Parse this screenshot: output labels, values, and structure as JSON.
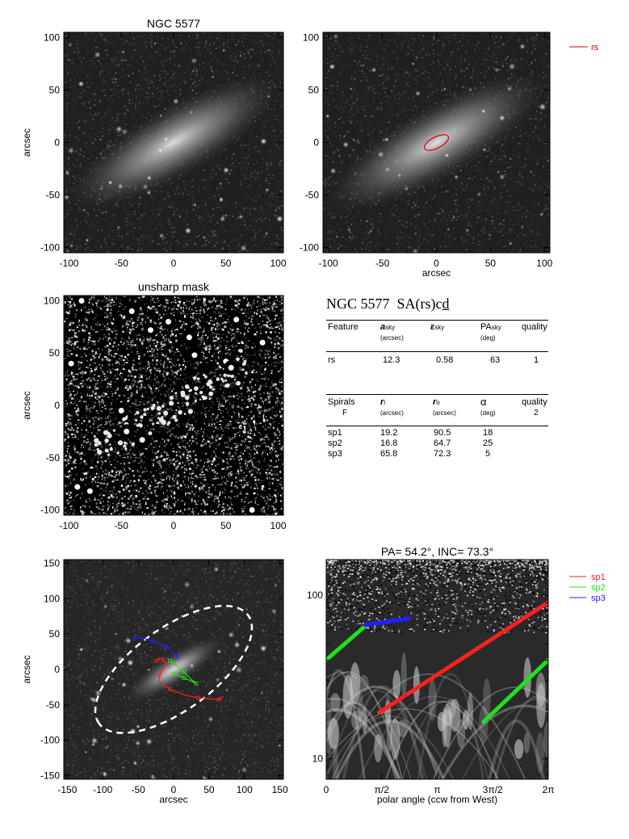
{
  "figure": {
    "panel1_title": "NGC 5577",
    "panel3_title": "unsharp mask",
    "panel6_title": "PA= 54.2°, INC= 73.3°",
    "axis_label_arcsec": "arcsec",
    "axis_label_polar": "polar angle (ccw from West)"
  },
  "legend_rs": "rs",
  "legend_spirals": [
    "sp1",
    "sp2",
    "sp3"
  ],
  "colors": {
    "rs": "#e00000",
    "sp1": "#ff2020",
    "sp2": "#20e020",
    "sp3": "#2020ff",
    "ellipse": "#ffffff"
  },
  "info_table": {
    "title_name": "NGC 5577",
    "title_type_prefix": "SA(rs)c",
    "title_type_underlined": "d",
    "ring_header": [
      "Feature",
      "a",
      "ε",
      "PA",
      "quality"
    ],
    "ring_header_sub": [
      "",
      "sky",
      "sky",
      "sky",
      ""
    ],
    "ring_header_units": [
      "",
      "(arcsec)",
      "",
      "(deg)",
      ""
    ],
    "rings": [
      {
        "feature": "rs",
        "a": "12.3",
        "eps": "0.58",
        "pa": "63",
        "quality": "1"
      }
    ],
    "spiral_header": [
      "Spirals",
      "r",
      "r",
      "α",
      "quality"
    ],
    "spiral_header_sub": [
      "",
      "i",
      "o",
      "",
      ""
    ],
    "spiral_header_units": [
      "F",
      "(arcsec)",
      "(arcsec)",
      "(deg)",
      "2"
    ],
    "spirals": [
      {
        "name": "sp1",
        "ri": "19.2",
        "ro": "90.5",
        "alpha": "18"
      },
      {
        "name": "sp2",
        "ri": "16.8",
        "ro": "64.7",
        "alpha": "25"
      },
      {
        "name": "sp3",
        "ri": "65.8",
        "ro": "72.3",
        "alpha": "5"
      }
    ]
  },
  "chart_data": [
    {
      "type": "image",
      "title": "NGC 5577",
      "xlim": [
        -105,
        105
      ],
      "ylim": [
        -105,
        105
      ],
      "xticks": [
        -100,
        -50,
        0,
        50,
        100
      ],
      "yticks": [
        -100,
        -50,
        0,
        50,
        100
      ],
      "xlabel": "",
      "ylabel": "arcsec"
    },
    {
      "type": "image",
      "title": "",
      "xlim": [
        -105,
        105
      ],
      "ylim": [
        -105,
        105
      ],
      "xticks": [
        -100,
        -50,
        0,
        50,
        100
      ],
      "yticks": [
        -100,
        -50,
        0,
        50,
        100
      ],
      "xlabel": "arcsec",
      "ylabel": "",
      "overlay": {
        "series": "rs",
        "a_arcsec": 12.3,
        "ellipticity": 0.58,
        "pa_image_deg": 153
      }
    },
    {
      "type": "image",
      "title": "unsharp mask",
      "xlim": [
        -105,
        105
      ],
      "ylim": [
        -105,
        105
      ],
      "xticks": [
        -100,
        -50,
        0,
        50,
        100
      ],
      "yticks": [
        -100,
        -50,
        0,
        50,
        100
      ],
      "xlabel": "",
      "ylabel": "arcsec"
    },
    {
      "type": "image",
      "title": "",
      "xlim": [
        -155,
        155
      ],
      "ylim": [
        -155,
        155
      ],
      "xticks": [
        -150,
        -100,
        -50,
        0,
        50,
        100,
        150
      ],
      "yticks": [
        -150,
        -100,
        -50,
        0,
        50,
        100,
        150
      ],
      "xlabel": "arcsec",
      "ylabel": "arcsec",
      "ellipse": {
        "a_arcsec": 130,
        "b_arcsec": 58,
        "pa_image_deg": 144
      },
      "series": [
        {
          "name": "sp1",
          "points": [
            [
              -25,
              12
            ],
            [
              -20,
              16
            ],
            [
              -15,
              14
            ],
            [
              -10,
              8
            ],
            [
              -20,
              -8
            ],
            [
              -20,
              -18
            ],
            [
              -5,
              -28
            ],
            [
              15,
              -36
            ],
            [
              35,
              -40
            ],
            [
              55,
              -42
            ],
            [
              65,
              -42
            ],
            [
              70,
              -38
            ]
          ]
        },
        {
          "name": "sp2",
          "points": [
            [
              -5,
              12
            ],
            [
              5,
              5
            ],
            [
              15,
              -4
            ],
            [
              25,
              -14
            ],
            [
              32,
              -20
            ],
            [
              28,
              -18
            ],
            [
              15,
              -12
            ],
            [
              5,
              -8
            ],
            [
              0,
              -6
            ]
          ]
        },
        {
          "name": "sp3",
          "points": [
            [
              -55,
              44
            ],
            [
              -42,
              44
            ],
            [
              -30,
              40
            ],
            [
              -20,
              36
            ],
            [
              -10,
              32
            ],
            [
              0,
              23
            ],
            [
              5,
              18
            ]
          ]
        }
      ]
    },
    {
      "type": "line",
      "title": "PA= 54.2°, INC= 73.3°",
      "xlabel": "polar angle (ccw from West)",
      "ylabel": "",
      "xlim": [
        0,
        6.2832
      ],
      "ylim": [
        7.5,
        165
      ],
      "yscale": "log",
      "xticks": [
        {
          "v": 0,
          "label": "0"
        },
        {
          "v": 1.5708,
          "label": "π/2"
        },
        {
          "v": 3.1416,
          "label": "π"
        },
        {
          "v": 4.7124,
          "label": "3π/2"
        },
        {
          "v": 6.2832,
          "label": "2π"
        }
      ],
      "yticks": [
        {
          "v": 10,
          "label": "10"
        },
        {
          "v": 100,
          "label": "100"
        }
      ],
      "series": [
        {
          "name": "sp1",
          "points": [
            [
              1.5,
              19.2
            ],
            [
              6.2832,
              90.5
            ]
          ]
        },
        {
          "name": "sp2",
          "points": [
            [
              0.0,
              40.2
            ],
            [
              1.1,
              64.7
            ]
          ]
        },
        {
          "name": "sp2",
          "points": [
            [
              4.45,
              16.8
            ],
            [
              6.2832,
              40.2
            ]
          ]
        },
        {
          "name": "sp3",
          "points": [
            [
              1.1,
              65.8
            ],
            [
              2.35,
              72.3
            ]
          ]
        }
      ]
    }
  ]
}
